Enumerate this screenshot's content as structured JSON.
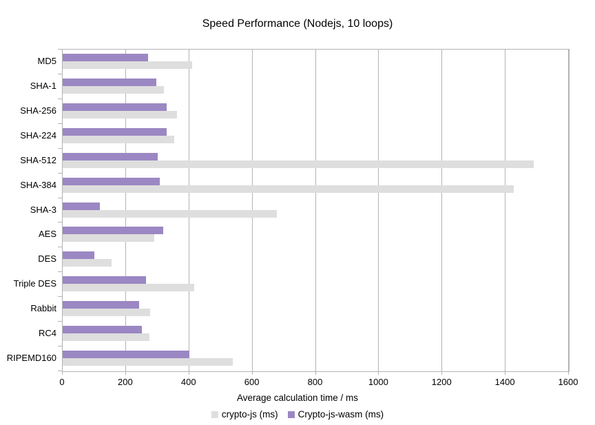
{
  "title": "Speed Performance (Nodejs, 10 loops)",
  "chart_data": {
    "type": "bar",
    "orientation": "horizontal",
    "title": "Speed Performance (Nodejs, 10 loops)",
    "xlabel": "Average calculation time / ms",
    "ylabel": "",
    "xlim": [
      0,
      1600
    ],
    "x_ticks": [
      0,
      200,
      400,
      600,
      800,
      1000,
      1200,
      1400,
      1600
    ],
    "grid": true,
    "legend_position": "bottom",
    "categories": [
      "MD5",
      "SHA-1",
      "SHA-256",
      "SHA-224",
      "SHA-512",
      "SHA-384",
      "SHA-3",
      "AES",
      "DES",
      "Triple DES",
      "Rabbit",
      "RC4",
      "RIPEMD160"
    ],
    "series": [
      {
        "name": "crypto-js (ms)",
        "color": "#dedede",
        "values": [
          410,
          320,
          362,
          353,
          1490,
          1425,
          676,
          290,
          155,
          415,
          277,
          274,
          537
        ]
      },
      {
        "name": "Crypto-js-wasm (ms)",
        "color": "#9b87c3",
        "values": [
          270,
          296,
          329,
          329,
          301,
          307,
          118,
          318,
          100,
          264,
          242,
          250,
          401
        ]
      }
    ],
    "bar_order_in_group_top_to_bottom": [
      "Crypto-js-wasm (ms)",
      "crypto-js (ms)"
    ]
  },
  "colors": {
    "grid": "#b3b3b3",
    "axis": "#b3b3b3",
    "text": "#000000",
    "background": "#ffffff"
  }
}
